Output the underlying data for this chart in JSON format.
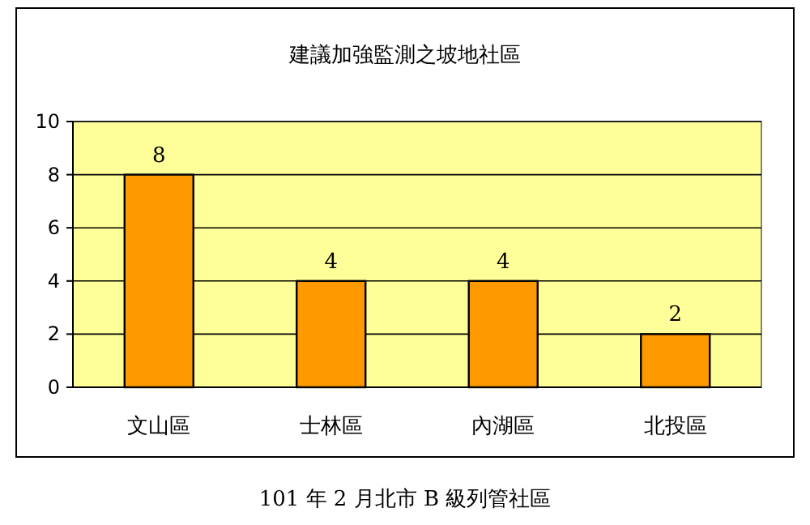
{
  "chart_data": {
    "type": "bar",
    "title": "建議加強監測之坡地社區",
    "categories": [
      "文山區",
      "士林區",
      "內湖區",
      "北投區"
    ],
    "values": [
      8,
      4,
      4,
      2
    ],
    "color": "#ff9900",
    "ylim": [
      0,
      10
    ],
    "yticks": [
      0,
      2,
      4,
      6,
      8,
      10
    ],
    "grid": "y",
    "data_labels": true,
    "annotations": [
      "101 年 2 月北市 B 級列管社區"
    ]
  }
}
